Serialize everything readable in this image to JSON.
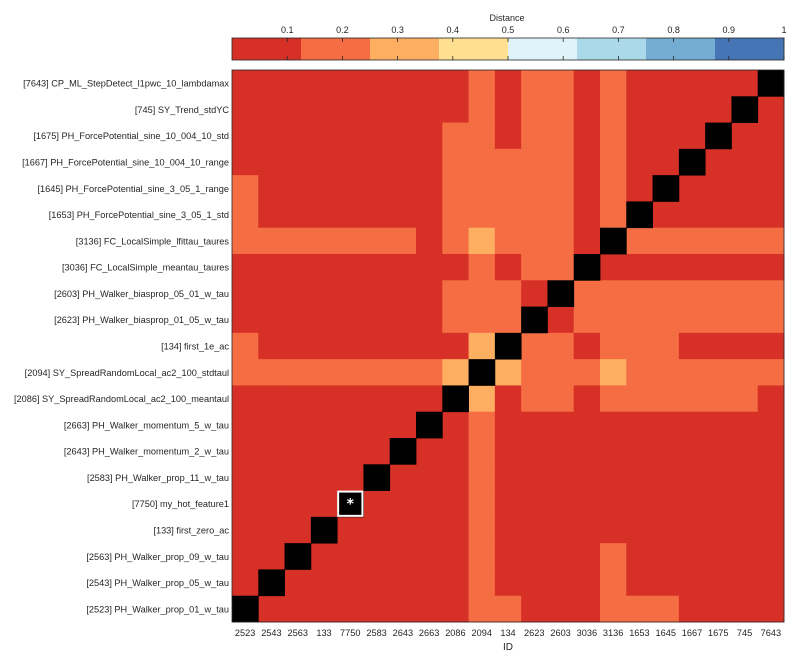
{
  "chart_data": {
    "type": "heatmap",
    "title": "",
    "colorbar": {
      "label": "Distance",
      "ticks": [
        0.1,
        0.2,
        0.3,
        0.4,
        0.5,
        0.6,
        0.7,
        0.8,
        0.9,
        1
      ],
      "tick_labels": [
        "0.1",
        "0.2",
        "0.3",
        "0.4",
        "0.5",
        "0.6",
        "0.7",
        "0.8",
        "0.9",
        "1"
      ],
      "range": [
        0,
        1
      ],
      "bins": [
        {
          "lo": 0.0,
          "hi": 0.125,
          "color": "#d73027"
        },
        {
          "lo": 0.125,
          "hi": 0.25,
          "color": "#f46d43"
        },
        {
          "lo": 0.25,
          "hi": 0.375,
          "color": "#fdae61"
        },
        {
          "lo": 0.375,
          "hi": 0.5,
          "color": "#fee090"
        },
        {
          "lo": 0.5,
          "hi": 0.625,
          "color": "#e0f3f8"
        },
        {
          "lo": 0.625,
          "hi": 0.75,
          "color": "#abd9e9"
        },
        {
          "lo": 0.75,
          "hi": 0.875,
          "color": "#74add1"
        },
        {
          "lo": 0.875,
          "hi": 1.0,
          "color": "#4575b4"
        }
      ],
      "location": "top"
    },
    "xlabel": "ID",
    "x_ticks": [
      "2523",
      "2543",
      "2563",
      "133",
      "7750",
      "2583",
      "2643",
      "2663",
      "2086",
      "2094",
      "134",
      "2623",
      "2603",
      "3036",
      "3136",
      "1653",
      "1645",
      "1667",
      "1675",
      "745",
      "7643"
    ],
    "y_labels": [
      "[7643] CP_ML_StepDetect_l1pwc_10_lambdamax",
      "[745] SY_Trend_stdYC",
      "[1675] PH_ForcePotential_sine_10_004_10_std",
      "[1667] PH_ForcePotential_sine_10_004_10_range",
      "[1645] PH_ForcePotential_sine_3_05_1_range",
      "[1653] PH_ForcePotential_sine_3_05_1_std",
      "[3136] FC_LocalSimple_lfittau_taures",
      "[3036] FC_LocalSimple_meantau_taures",
      "[2603] PH_Walker_biasprop_05_01_w_tau",
      "[2623] PH_Walker_biasprop_01_05_w_tau",
      "[134] first_1e_ac",
      "[2094] SY_SpreadRandomLocal_ac2_100_stdtaul",
      "[2086] SY_SpreadRandomLocal_ac2_100_meantaul",
      "[2663] PH_Walker_momentum_5_w_tau",
      "[2643] PH_Walker_momentum_2_w_tau",
      "[2583] PH_Walker_prop_11_w_tau",
      "[7750] my_hot_feature1",
      "[133] first_zero_ac",
      "[2563] PH_Walker_prop_09_w_tau",
      "[2543] PH_Walker_prop_05_w_tau",
      "[2523] PH_Walker_prop_01_w_tau"
    ],
    "highlight": {
      "row": 16,
      "col": 4,
      "marker": "*"
    },
    "diagonal_color": "#000000",
    "matrix": [
      [
        0.05,
        0.05,
        0.05,
        0.05,
        0.05,
        0.05,
        0.05,
        0.05,
        0.05,
        0.2,
        0.05,
        0.2,
        0.2,
        0.05,
        0.2,
        0.05,
        0.05,
        0.05,
        0.05,
        0.05,
        0
      ],
      [
        0.05,
        0.05,
        0.05,
        0.05,
        0.05,
        0.05,
        0.05,
        0.05,
        0.05,
        0.2,
        0.05,
        0.2,
        0.2,
        0.05,
        0.2,
        0.05,
        0.05,
        0.05,
        0.05,
        0,
        0.05
      ],
      [
        0.05,
        0.05,
        0.05,
        0.05,
        0.05,
        0.05,
        0.05,
        0.05,
        0.2,
        0.2,
        0.05,
        0.2,
        0.2,
        0.05,
        0.2,
        0.05,
        0.05,
        0.05,
        0,
        0.05,
        0.05
      ],
      [
        0.05,
        0.05,
        0.05,
        0.05,
        0.05,
        0.05,
        0.05,
        0.05,
        0.2,
        0.2,
        0.2,
        0.2,
        0.2,
        0.05,
        0.2,
        0.05,
        0.05,
        0,
        0.05,
        0.05,
        0.05
      ],
      [
        0.2,
        0.05,
        0.05,
        0.05,
        0.05,
        0.05,
        0.05,
        0.05,
        0.2,
        0.2,
        0.2,
        0.2,
        0.2,
        0.05,
        0.2,
        0.05,
        0,
        0.05,
        0.05,
        0.05,
        0.05
      ],
      [
        0.2,
        0.05,
        0.05,
        0.05,
        0.05,
        0.05,
        0.05,
        0.05,
        0.2,
        0.2,
        0.2,
        0.2,
        0.2,
        0.05,
        0.2,
        0,
        0.05,
        0.05,
        0.05,
        0.05,
        0.05
      ],
      [
        0.2,
        0.2,
        0.2,
        0.2,
        0.2,
        0.2,
        0.2,
        0.05,
        0.2,
        0.3,
        0.2,
        0.2,
        0.2,
        0.05,
        0,
        0.2,
        0.2,
        0.2,
        0.2,
        0.2,
        0.2
      ],
      [
        0.05,
        0.05,
        0.05,
        0.05,
        0.05,
        0.05,
        0.05,
        0.05,
        0.05,
        0.2,
        0.05,
        0.2,
        0.2,
        0,
        0.05,
        0.05,
        0.05,
        0.05,
        0.05,
        0.05,
        0.05
      ],
      [
        0.05,
        0.05,
        0.05,
        0.05,
        0.05,
        0.05,
        0.05,
        0.05,
        0.2,
        0.2,
        0.2,
        0.05,
        0,
        0.2,
        0.2,
        0.2,
        0.2,
        0.2,
        0.2,
        0.2,
        0.2
      ],
      [
        0.05,
        0.05,
        0.05,
        0.05,
        0.05,
        0.05,
        0.05,
        0.05,
        0.2,
        0.2,
        0.2,
        0,
        0.05,
        0.2,
        0.2,
        0.2,
        0.2,
        0.2,
        0.2,
        0.2,
        0.2
      ],
      [
        0.2,
        0.05,
        0.05,
        0.05,
        0.05,
        0.05,
        0.05,
        0.05,
        0.05,
        0.3,
        0,
        0.2,
        0.2,
        0.05,
        0.2,
        0.2,
        0.2,
        0.05,
        0.05,
        0.05,
        0.05
      ],
      [
        0.2,
        0.2,
        0.2,
        0.2,
        0.2,
        0.2,
        0.2,
        0.2,
        0.3,
        0,
        0.3,
        0.2,
        0.2,
        0.2,
        0.3,
        0.2,
        0.2,
        0.2,
        0.2,
        0.2,
        0.2
      ],
      [
        0.05,
        0.05,
        0.05,
        0.05,
        0.05,
        0.05,
        0.05,
        0.05,
        0,
        0.3,
        0.05,
        0.2,
        0.2,
        0.05,
        0.2,
        0.2,
        0.2,
        0.2,
        0.2,
        0.2,
        0.05
      ],
      [
        0.05,
        0.05,
        0.05,
        0.05,
        0.05,
        0.05,
        0.05,
        0,
        0.05,
        0.2,
        0.05,
        0.05,
        0.05,
        0.05,
        0.05,
        0.05,
        0.05,
        0.05,
        0.05,
        0.05,
        0.05
      ],
      [
        0.05,
        0.05,
        0.05,
        0.05,
        0.05,
        0.05,
        0,
        0.05,
        0.05,
        0.2,
        0.05,
        0.05,
        0.05,
        0.05,
        0.05,
        0.05,
        0.05,
        0.05,
        0.05,
        0.05,
        0.05
      ],
      [
        0.05,
        0.05,
        0.05,
        0.05,
        0.05,
        0,
        0.05,
        0.05,
        0.05,
        0.2,
        0.05,
        0.05,
        0.05,
        0.05,
        0.05,
        0.05,
        0.05,
        0.05,
        0.05,
        0.05,
        0.05
      ],
      [
        0.05,
        0.05,
        0.05,
        0.05,
        0,
        0.05,
        0.05,
        0.05,
        0.05,
        0.2,
        0.05,
        0.05,
        0.05,
        0.05,
        0.05,
        0.05,
        0.05,
        0.05,
        0.05,
        0.05,
        0.05
      ],
      [
        0.05,
        0.05,
        0.05,
        0,
        0.05,
        0.05,
        0.05,
        0.05,
        0.05,
        0.2,
        0.05,
        0.05,
        0.05,
        0.05,
        0.05,
        0.05,
        0.05,
        0.05,
        0.05,
        0.05,
        0.05
      ],
      [
        0.05,
        0.05,
        0,
        0.05,
        0.05,
        0.05,
        0.05,
        0.05,
        0.05,
        0.2,
        0.05,
        0.05,
        0.05,
        0.05,
        0.2,
        0.05,
        0.05,
        0.05,
        0.05,
        0.05,
        0.05
      ],
      [
        0.05,
        0,
        0.05,
        0.05,
        0.05,
        0.05,
        0.05,
        0.05,
        0.05,
        0.2,
        0.05,
        0.05,
        0.05,
        0.05,
        0.2,
        0.05,
        0.05,
        0.05,
        0.05,
        0.05,
        0.05
      ],
      [
        0,
        0.05,
        0.05,
        0.05,
        0.05,
        0.05,
        0.05,
        0.05,
        0.05,
        0.2,
        0.2,
        0.05,
        0.05,
        0.05,
        0.2,
        0.2,
        0.2,
        0.05,
        0.05,
        0.05,
        0.05
      ]
    ]
  }
}
